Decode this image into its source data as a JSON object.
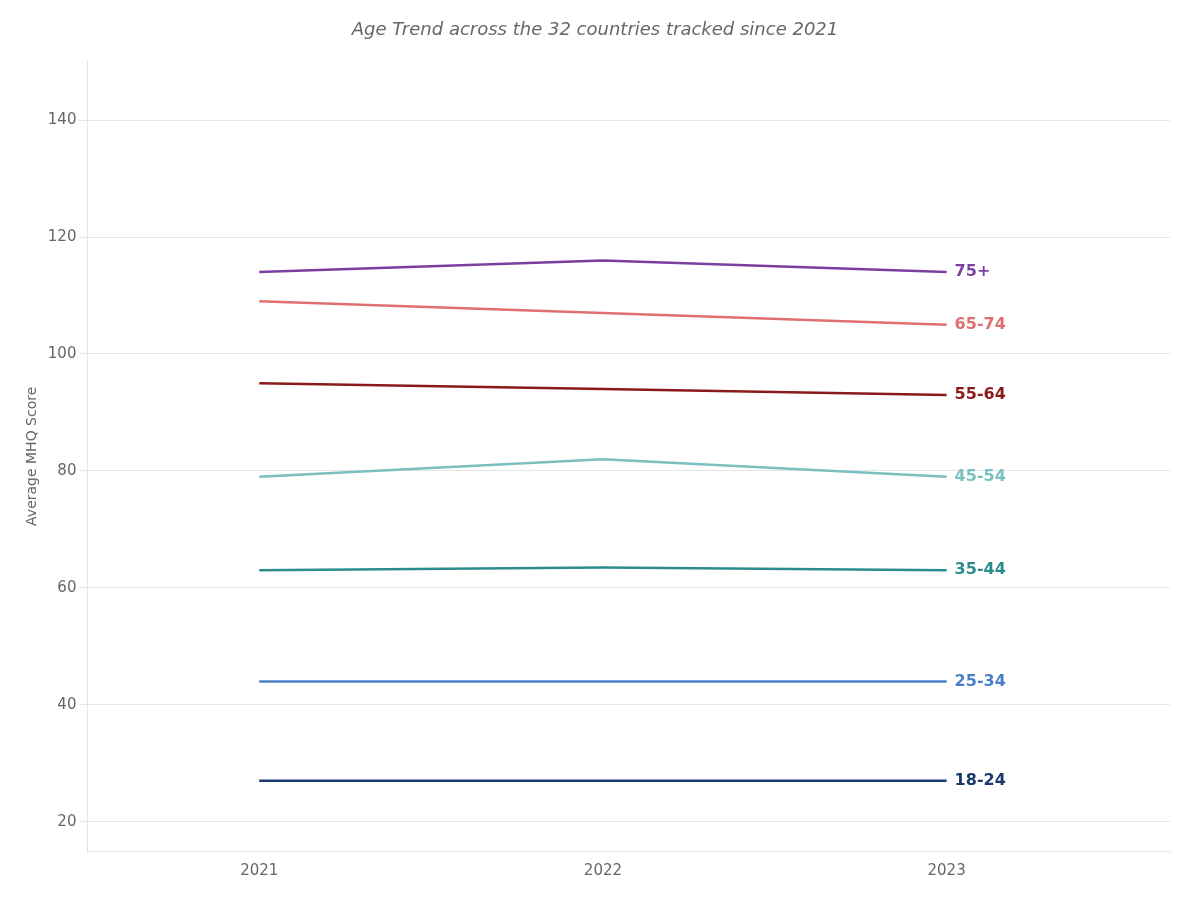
{
  "chart_data": {
    "type": "line",
    "title": "Age Trend across the 32 countries tracked since 2021",
    "ylabel": "Average MHQ Score",
    "x": [
      2021,
      2022,
      2023
    ],
    "series": [
      {
        "name": "75+",
        "color": "#7B3FA0",
        "values": [
          114,
          116,
          114
        ]
      },
      {
        "name": "65-74",
        "color": "#E07070",
        "values": [
          109,
          107,
          105
        ]
      },
      {
        "name": "55-64",
        "color": "#8B1A1A",
        "values": [
          95,
          94,
          93
        ]
      },
      {
        "name": "45-54",
        "color": "#7BBFBF",
        "values": [
          79,
          82,
          79
        ]
      },
      {
        "name": "35-44",
        "color": "#2E8B8B",
        "values": [
          63,
          63.5,
          63
        ]
      },
      {
        "name": "25-34",
        "color": "#4A7EC7",
        "values": [
          44,
          44,
          44
        ]
      },
      {
        "name": "18-24",
        "color": "#1A3A6B",
        "values": [
          27,
          27,
          27
        ]
      }
    ],
    "xlim": [
      2020.5,
      2023.65
    ],
    "xticks": [
      2021,
      2022,
      2023
    ],
    "ylim": [
      15,
      150
    ],
    "yticks": [
      20,
      40,
      60,
      80,
      100,
      120,
      140
    ],
    "grid": "y"
  }
}
